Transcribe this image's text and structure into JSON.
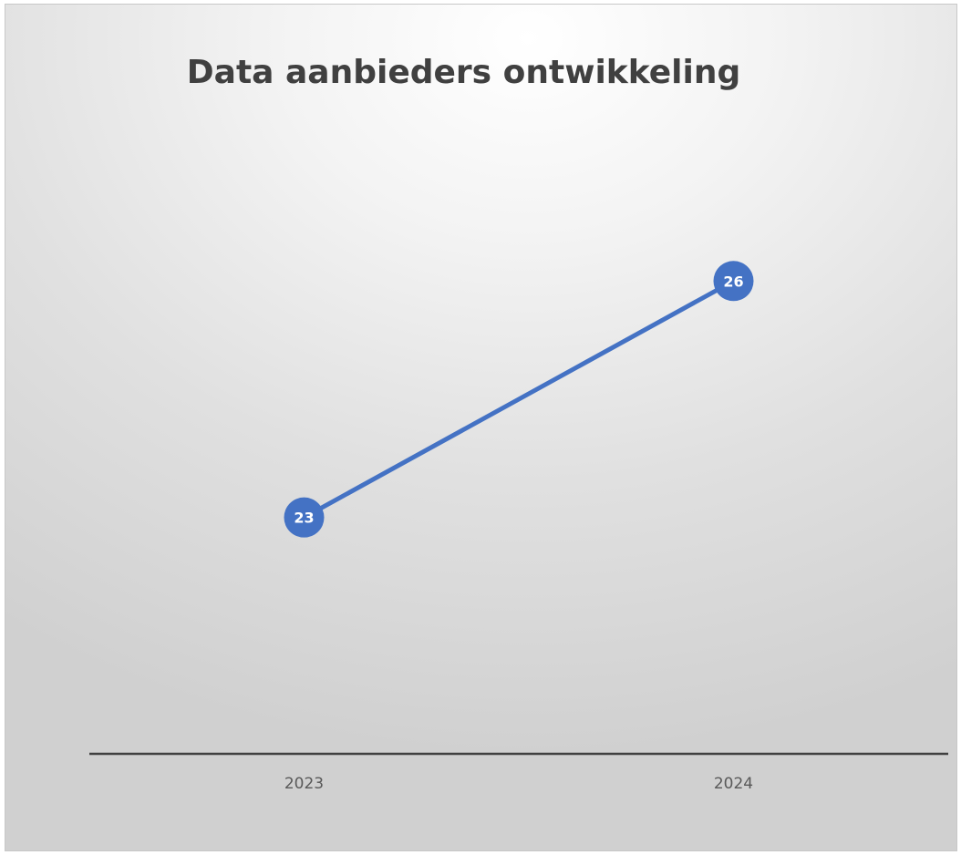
{
  "chart_data": {
    "type": "line",
    "title": "Data aanbieders ontwikkeling",
    "categories": [
      "2023",
      "2024"
    ],
    "series": [
      {
        "values": [
          23,
          26
        ],
        "color": "#4472C4"
      }
    ],
    "data_labels": [
      "23",
      "26"
    ],
    "xlabel": "",
    "ylabel": "",
    "ylim": [
      20.0,
      27.75
    ],
    "grid": false,
    "legend": "none",
    "axis_color": "#404040"
  }
}
